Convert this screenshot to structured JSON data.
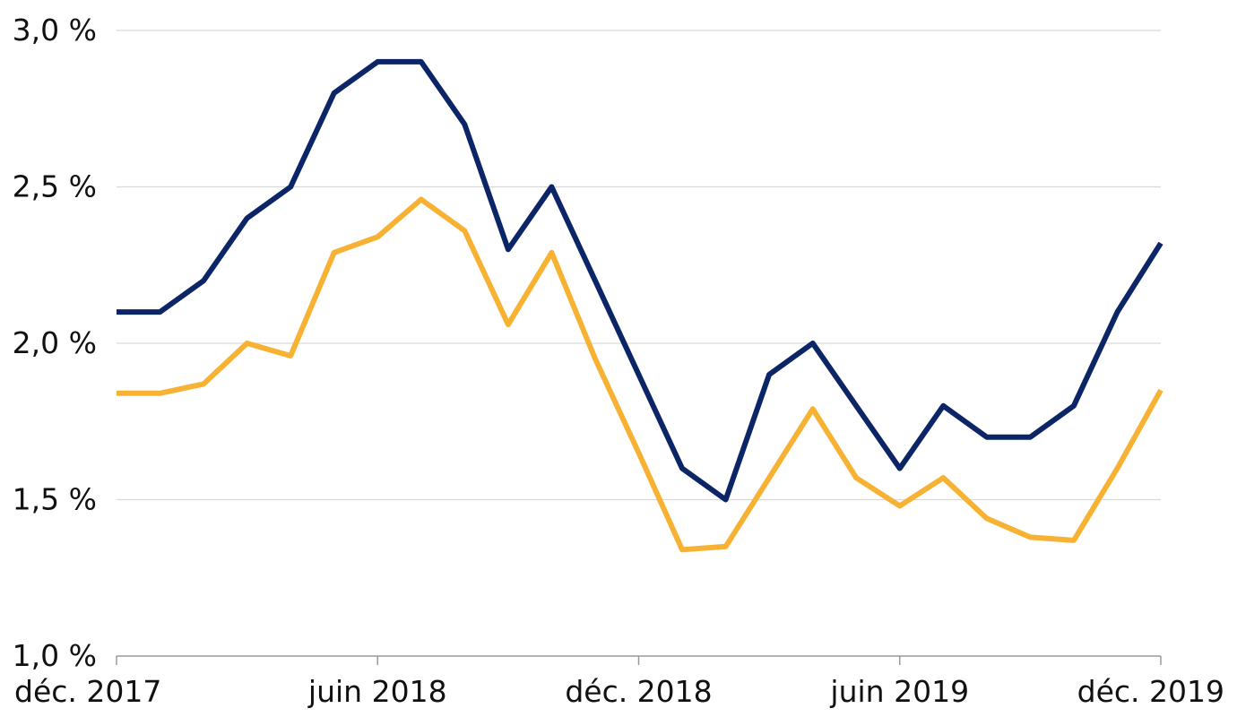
{
  "chart_data": {
    "type": "line",
    "title": "",
    "xlabel": "",
    "ylabel": "",
    "x": [
      "2017-12",
      "2018-01",
      "2018-02",
      "2018-03",
      "2018-04",
      "2018-05",
      "2018-06",
      "2018-07",
      "2018-08",
      "2018-09",
      "2018-10",
      "2018-11",
      "2018-12",
      "2019-01",
      "2019-02",
      "2019-03",
      "2019-04",
      "2019-05",
      "2019-06",
      "2019-07",
      "2019-08",
      "2019-09",
      "2019-10",
      "2019-11",
      "2019-12"
    ],
    "x_ticks": [
      {
        "index": 0,
        "label": "déc. 2017"
      },
      {
        "index": 6,
        "label": "juin 2018"
      },
      {
        "index": 12,
        "label": "déc. 2018"
      },
      {
        "index": 18,
        "label": "juin 2019"
      },
      {
        "index": 24,
        "label": "déc. 2019"
      }
    ],
    "y_ticks": [
      {
        "value": 1.0,
        "label": "1,0 %"
      },
      {
        "value": 1.5,
        "label": "1,5 %"
      },
      {
        "value": 2.0,
        "label": "2,0 %"
      },
      {
        "value": 2.5,
        "label": "2,5 %"
      },
      {
        "value": 3.0,
        "label": "3,0 %"
      }
    ],
    "ylim": [
      1.0,
      3.0
    ],
    "grid": true,
    "legend": "none",
    "series": [
      {
        "name": "navy series",
        "color": "#0b2566",
        "values": [
          2.1,
          2.1,
          2.2,
          2.4,
          2.5,
          2.8,
          2.9,
          2.9,
          2.7,
          2.3,
          2.5,
          2.2,
          1.9,
          1.6,
          1.5,
          1.9,
          2.0,
          1.8,
          1.6,
          1.8,
          1.7,
          1.7,
          1.8,
          2.1,
          2.32
        ]
      },
      {
        "name": "gold series",
        "color": "#f8b233",
        "values": [
          1.84,
          1.84,
          1.87,
          2.0,
          1.96,
          2.29,
          2.34,
          2.46,
          2.36,
          2.06,
          2.29,
          1.95,
          1.65,
          1.34,
          1.35,
          1.57,
          1.79,
          1.57,
          1.48,
          1.57,
          1.44,
          1.38,
          1.37,
          1.6,
          1.85
        ]
      }
    ]
  }
}
